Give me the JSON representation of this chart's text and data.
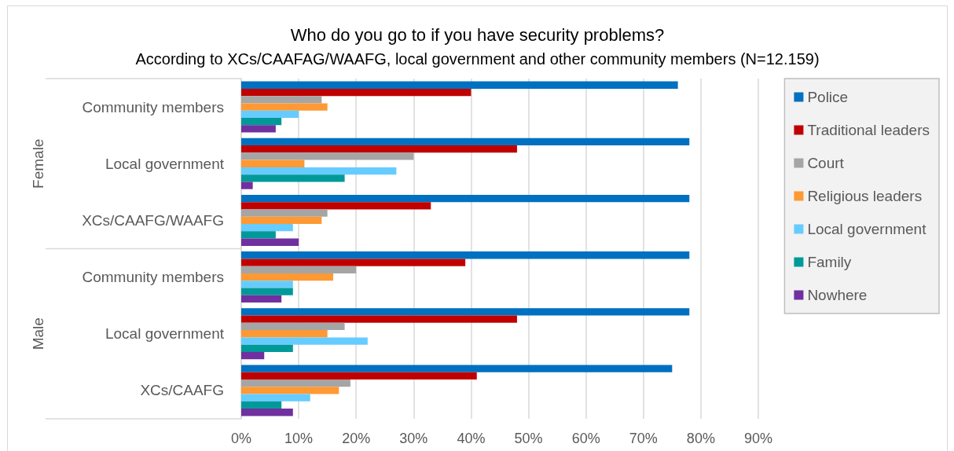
{
  "chart_data": {
    "type": "bar",
    "orientation": "horizontal",
    "title": "Who do you go to if you have security problems?",
    "subtitle": "According to XCs/CAAFAG/WAAFG, local government and other community members (N=12.159)",
    "categories": [
      "Community members",
      "Local government",
      "XCs/CAAFG/WAAFG",
      "Community members",
      "Local government",
      "XCs/CAAFG"
    ],
    "annotations": [
      "Female",
      "Male"
    ],
    "series": [
      {
        "name": "Police",
        "color": "#0070c0",
        "values": [
          76,
          78,
          78,
          78,
          78,
          75
        ]
      },
      {
        "name": "Traditional leaders",
        "color": "#c00000",
        "values": [
          40,
          48,
          33,
          39,
          48,
          41
        ]
      },
      {
        "name": "Court",
        "color": "#a5a5a5",
        "values": [
          14,
          30,
          15,
          20,
          18,
          19
        ]
      },
      {
        "name": "Religious leaders",
        "color": "#ff9933",
        "values": [
          15,
          11,
          14,
          16,
          15,
          17
        ]
      },
      {
        "name": "Local government",
        "color": "#66ccff",
        "values": [
          10,
          27,
          9,
          9,
          22,
          12
        ]
      },
      {
        "name": "Family",
        "color": "#009999",
        "values": [
          7,
          18,
          6,
          9,
          9,
          7
        ]
      },
      {
        "name": "Nowhere",
        "color": "#7030a0",
        "values": [
          6,
          2,
          10,
          7,
          4,
          9
        ]
      }
    ],
    "xlim": [
      0,
      90
    ],
    "xticks": [
      {
        "value": 0,
        "label": "0%"
      },
      {
        "value": 10,
        "label": "10%"
      },
      {
        "value": 20,
        "label": "20%"
      },
      {
        "value": 30,
        "label": "30%"
      },
      {
        "value": 40,
        "label": "40%"
      },
      {
        "value": 50,
        "label": "50%"
      },
      {
        "value": 60,
        "label": "60%"
      },
      {
        "value": 70,
        "label": "70%"
      },
      {
        "value": 80,
        "label": "80%"
      },
      {
        "value": 90,
        "label": "90%"
      }
    ],
    "grid": "x",
    "legend": "top right"
  }
}
